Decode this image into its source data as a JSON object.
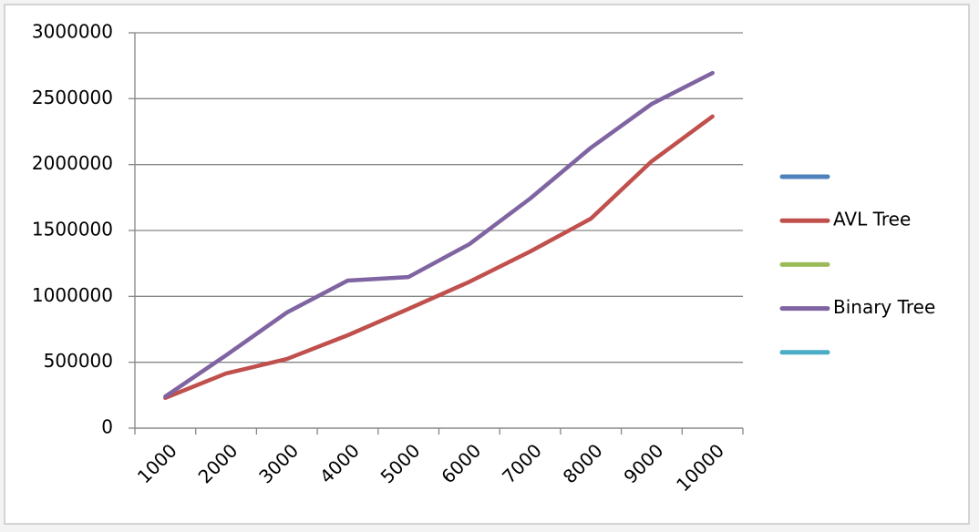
{
  "chart_data": {
    "type": "line",
    "categories": [
      "1000",
      "2000",
      "3000",
      "4000",
      "5000",
      "6000",
      "7000",
      "8000",
      "9000",
      "10000"
    ],
    "series": [
      {
        "color": "#4f81bd",
        "values": [
          null,
          null,
          null,
          null,
          null,
          null,
          null,
          null,
          null,
          null
        ]
      },
      {
        "name": "AVL Tree",
        "color": "#c0504d",
        "values": [
          230000,
          415000,
          525000,
          705000,
          905000,
          1110000,
          1340000,
          1590000,
          2025000,
          2365000
        ]
      },
      {
        "color": "#9bbb59",
        "values": [
          null,
          null,
          null,
          null,
          null,
          null,
          null,
          null,
          null,
          null
        ]
      },
      {
        "name": "Binary Tree",
        "color": "#8064a2",
        "values": [
          240000,
          553000,
          878000,
          1120000,
          1147000,
          1396000,
          1742000,
          2128000,
          2460000,
          2695000
        ]
      },
      {
        "color": "#4bacc6",
        "values": [
          null,
          null,
          null,
          null,
          null,
          null,
          null,
          null,
          null,
          null
        ]
      }
    ],
    "ylim": [
      0,
      3000000
    ],
    "yticks": [
      0,
      500000,
      1000000,
      1500000,
      2000000,
      2500000,
      3000000
    ],
    "grid": true,
    "legend": "right"
  }
}
